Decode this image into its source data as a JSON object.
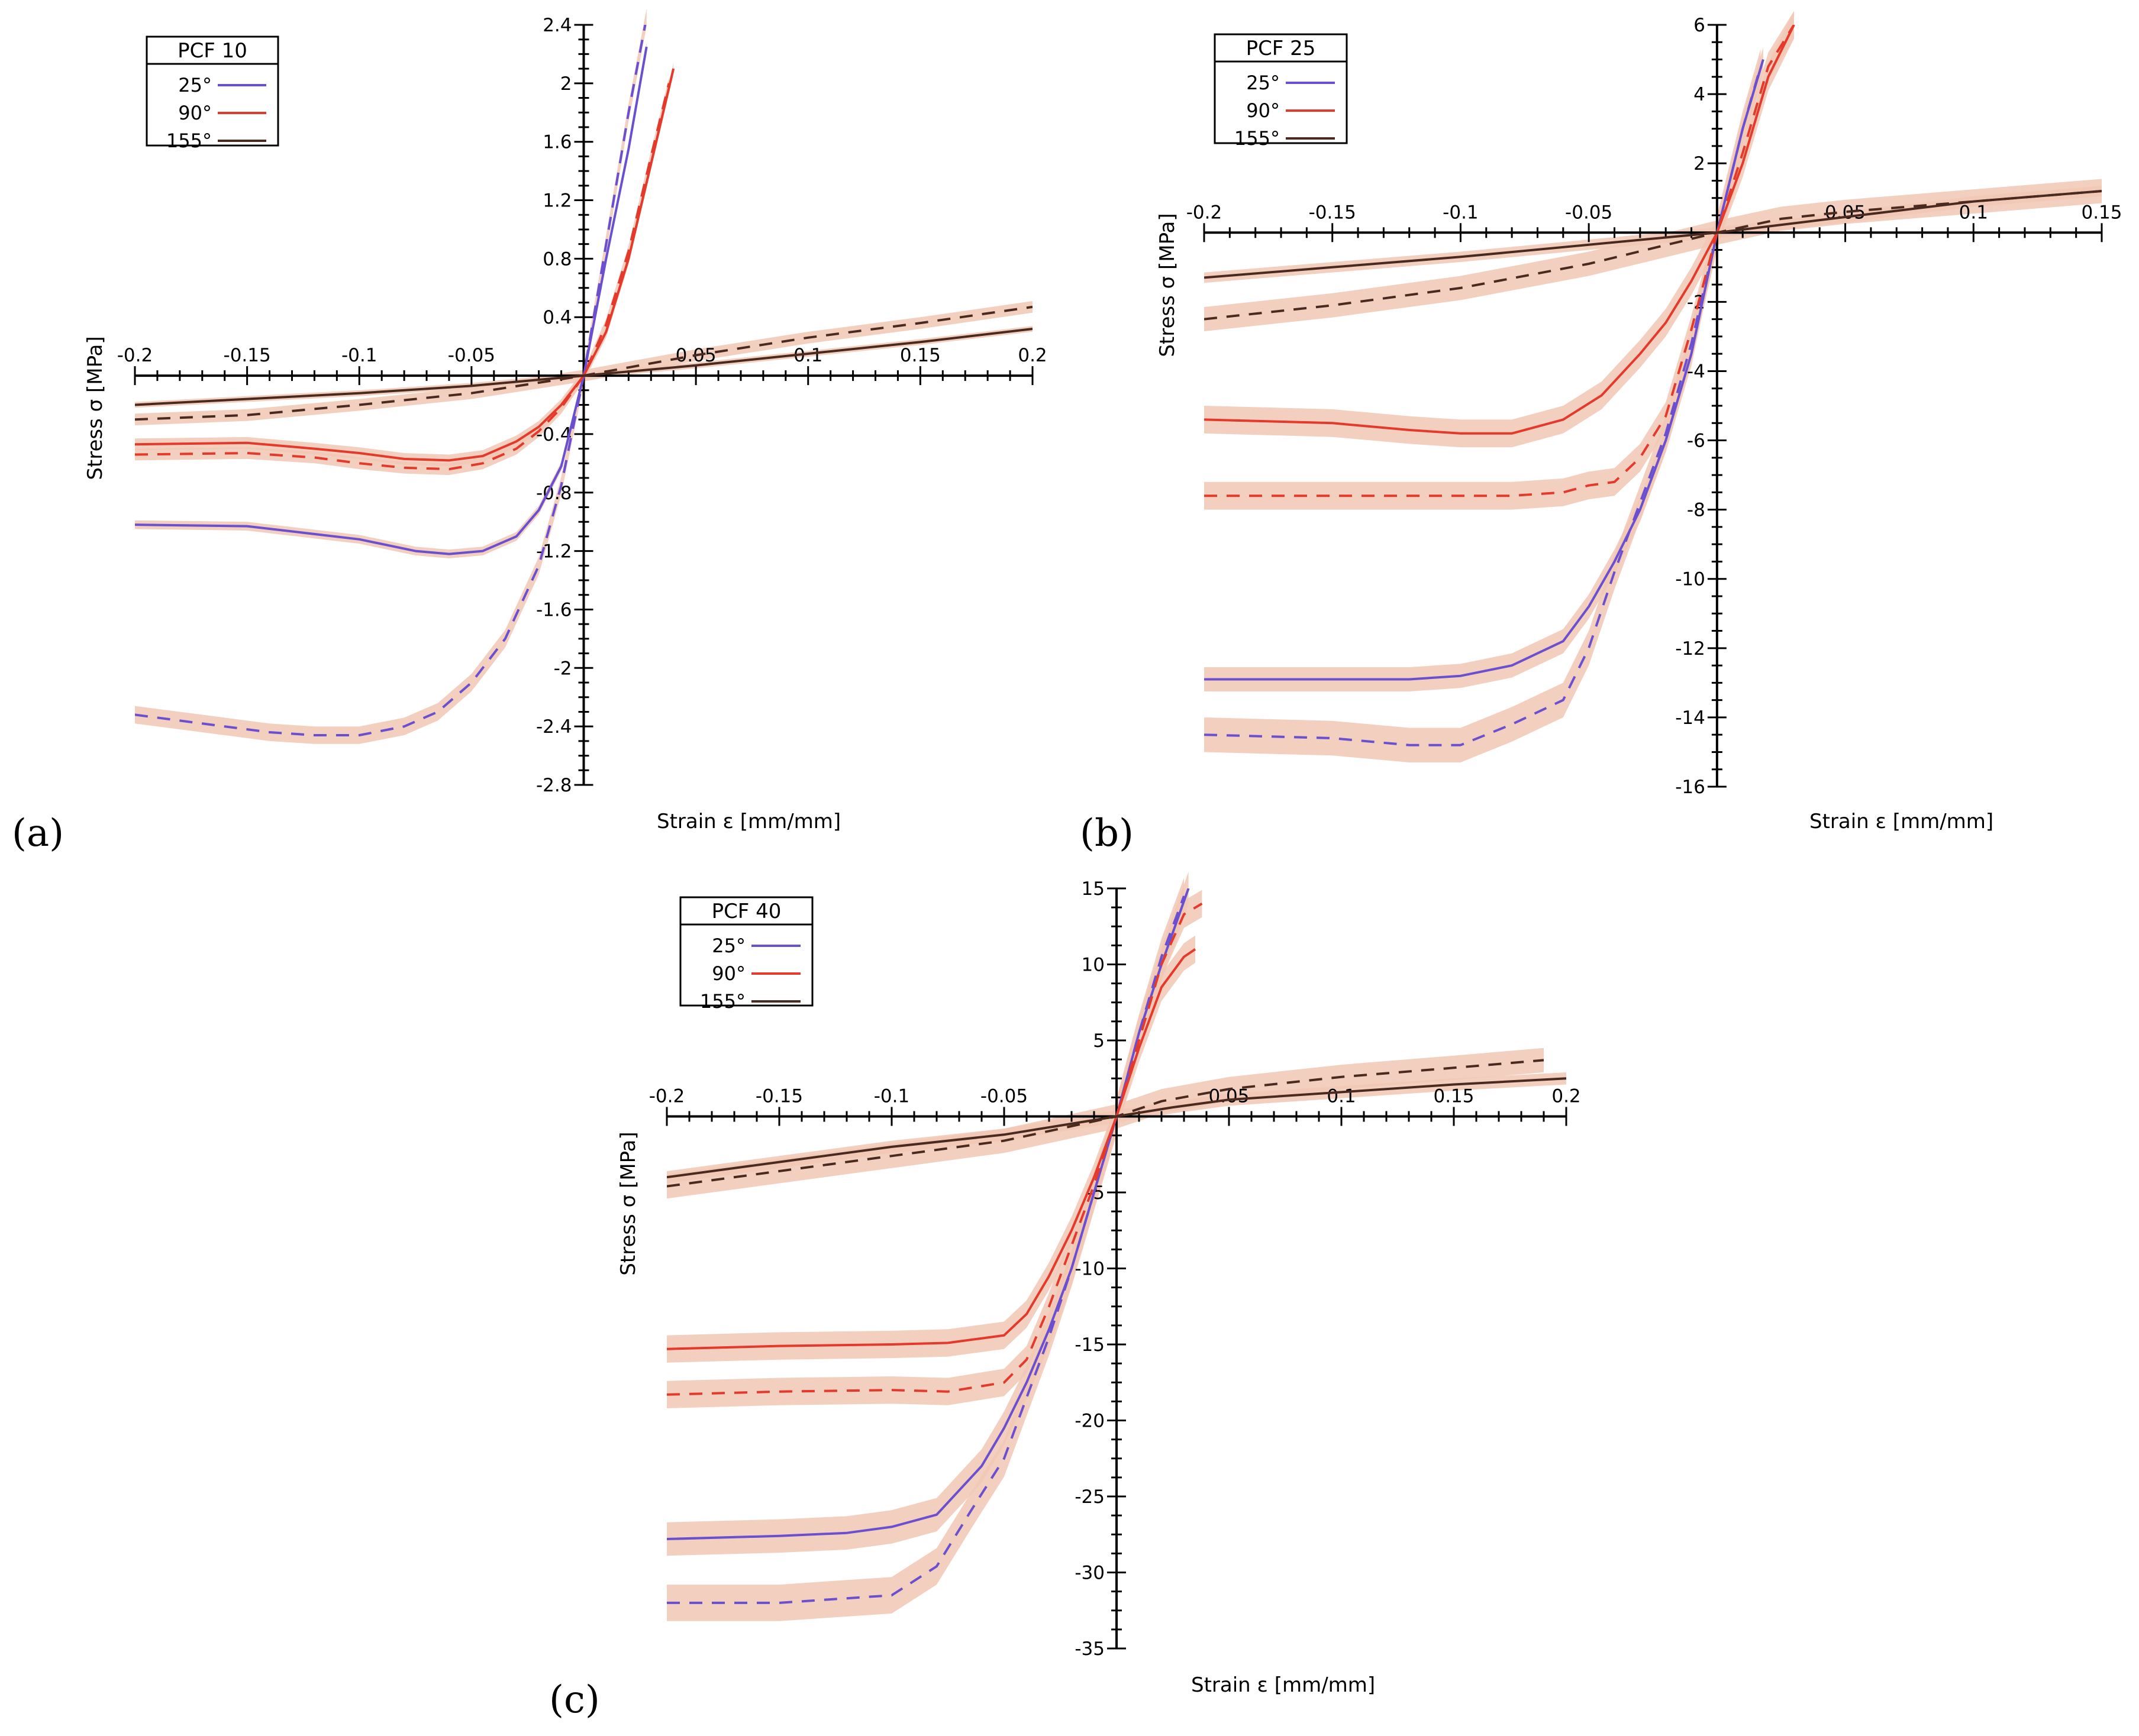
{
  "figure": {
    "panel_letters": [
      "(a)",
      "(b)",
      "(c)"
    ],
    "band_color": "#f1c7b4",
    "colors": {
      "25°": "#6a4fcf",
      "90°": "#e33a2c",
      "155°": "#4a2a1e"
    }
  },
  "chart_data": [
    {
      "type": "line",
      "title": "PCF 10",
      "xlabel": "Strain ε [mm/mm]",
      "ylabel": "Stress σ [MPa]",
      "xlim": [
        -0.2,
        0.2
      ],
      "ylim": [
        -2.8,
        2.4
      ],
      "xticks": [
        -0.2,
        -0.15,
        -0.1,
        -0.05,
        0.05,
        0.1,
        0.15,
        0.2
      ],
      "xtick_labels": [
        "-0.2",
        "-0.15",
        "-0.1",
        "-0.05",
        "0.05",
        "0.1",
        "0.15",
        "0.2"
      ],
      "yticks": [
        -2.8,
        -2.4,
        -2,
        -1.6,
        -1.2,
        -0.8,
        -0.4,
        0.4,
        0.8,
        1.2,
        1.6,
        2,
        2.4
      ],
      "ytick_labels": [
        "-2.8",
        "-2.4",
        "-2",
        "-1.6",
        "-1.2",
        "-0.8",
        "-0.4",
        "0.4",
        "0.8",
        "1.2",
        "1.6",
        "2",
        "2.4"
      ],
      "legend": {
        "title": "PCF 10",
        "entries": [
          "25°",
          "90°",
          "155°"
        ],
        "position": "top-left"
      },
      "series": [
        {
          "name": "25°",
          "dash": false,
          "band": 0.03,
          "x": [
            -0.2,
            -0.15,
            -0.1,
            -0.075,
            -0.06,
            -0.045,
            -0.03,
            -0.02,
            -0.01,
            0,
            0.01,
            0.02,
            0.028
          ],
          "y": [
            -1.02,
            -1.03,
            -1.12,
            -1.2,
            -1.22,
            -1.2,
            -1.1,
            -0.92,
            -0.62,
            0,
            0.8,
            1.55,
            2.25
          ]
        },
        {
          "name": "25°",
          "dash": true,
          "band": 0.06,
          "x": [
            -0.2,
            -0.16,
            -0.14,
            -0.12,
            -0.1,
            -0.08,
            -0.065,
            -0.05,
            -0.035,
            -0.02,
            -0.01,
            0,
            0.01,
            0.02,
            0.028
          ],
          "y": [
            -2.32,
            -2.4,
            -2.44,
            -2.46,
            -2.46,
            -2.4,
            -2.3,
            -2.1,
            -1.8,
            -1.3,
            -0.75,
            0,
            0.9,
            1.8,
            2.45
          ]
        },
        {
          "name": "90°",
          "dash": false,
          "band": 0.04,
          "x": [
            -0.2,
            -0.15,
            -0.12,
            -0.1,
            -0.08,
            -0.06,
            -0.045,
            -0.03,
            -0.02,
            -0.01,
            0,
            0.01,
            0.02,
            0.03,
            0.04
          ],
          "y": [
            -0.47,
            -0.46,
            -0.5,
            -0.53,
            -0.57,
            -0.58,
            -0.55,
            -0.45,
            -0.35,
            -0.2,
            0,
            0.3,
            0.8,
            1.45,
            2.1
          ]
        },
        {
          "name": "90°",
          "dash": true,
          "band": 0.04,
          "x": [
            -0.2,
            -0.15,
            -0.12,
            -0.1,
            -0.08,
            -0.06,
            -0.045,
            -0.03,
            -0.02,
            -0.01,
            0,
            0.01,
            0.02,
            0.03,
            0.038
          ],
          "y": [
            -0.54,
            -0.53,
            -0.56,
            -0.6,
            -0.63,
            -0.64,
            -0.6,
            -0.5,
            -0.38,
            -0.22,
            0,
            0.35,
            0.85,
            1.5,
            2.0
          ]
        },
        {
          "name": "155°",
          "dash": false,
          "band": 0.02,
          "x": [
            -0.2,
            -0.1,
            -0.05,
            0,
            0.05,
            0.1,
            0.15,
            0.2
          ],
          "y": [
            -0.2,
            -0.12,
            -0.07,
            0,
            0.07,
            0.15,
            0.23,
            0.32
          ]
        },
        {
          "name": "155°",
          "dash": true,
          "band": 0.04,
          "x": [
            -0.2,
            -0.15,
            -0.1,
            -0.05,
            -0.025,
            0,
            0.025,
            0.05,
            0.1,
            0.15,
            0.2
          ],
          "y": [
            -0.3,
            -0.27,
            -0.2,
            -0.12,
            -0.06,
            0,
            0.07,
            0.14,
            0.26,
            0.36,
            0.47
          ]
        }
      ]
    },
    {
      "type": "line",
      "title": "PCF 25",
      "xlabel": "Strain ε [mm/mm]",
      "ylabel": "Stress σ [MPa]",
      "xlim": [
        -0.2,
        0.15
      ],
      "ylim": [
        -16,
        6
      ],
      "xticks": [
        -0.2,
        -0.15,
        -0.1,
        -0.05,
        0.05,
        0.1,
        0.15
      ],
      "xtick_labels": [
        "-0.2",
        "-0.15",
        "-0.1",
        "-0.05",
        "0.05",
        "0.1",
        "0.15"
      ],
      "yticks": [
        -16,
        -14,
        -12,
        -10,
        -8,
        -6,
        -4,
        -2,
        2,
        4,
        6
      ],
      "ytick_labels": [
        "-16",
        "-14",
        "-12",
        "-10",
        "-8",
        "-6",
        "-4",
        "-2",
        "2",
        "4",
        "6"
      ],
      "legend": {
        "title": "PCF 25",
        "entries": [
          "25°",
          "90°",
          "155°"
        ],
        "position": "top-left"
      },
      "series": [
        {
          "name": "25°",
          "dash": false,
          "band": 0.35,
          "x": [
            -0.2,
            -0.15,
            -0.12,
            -0.1,
            -0.08,
            -0.06,
            -0.05,
            -0.04,
            -0.03,
            -0.02,
            -0.01,
            0,
            0.01,
            0.018
          ],
          "y": [
            -12.9,
            -12.9,
            -12.9,
            -12.8,
            -12.5,
            -11.8,
            -10.8,
            -9.5,
            -8,
            -6,
            -3.5,
            0,
            3,
            5
          ]
        },
        {
          "name": "25°",
          "dash": true,
          "band": 0.5,
          "x": [
            -0.2,
            -0.15,
            -0.12,
            -0.1,
            -0.08,
            -0.06,
            -0.05,
            -0.04,
            -0.03,
            -0.02,
            -0.01,
            0,
            0.01,
            0.017
          ],
          "y": [
            -14.5,
            -14.6,
            -14.8,
            -14.8,
            -14.2,
            -13.5,
            -12,
            -9.8,
            -7.8,
            -5.8,
            -3.2,
            0,
            3,
            4.8
          ]
        },
        {
          "name": "90°",
          "dash": false,
          "band": 0.4,
          "x": [
            -0.2,
            -0.15,
            -0.12,
            -0.1,
            -0.08,
            -0.06,
            -0.045,
            -0.03,
            -0.02,
            -0.01,
            0,
            0.01,
            0.02,
            0.03
          ],
          "y": [
            -5.4,
            -5.5,
            -5.7,
            -5.8,
            -5.8,
            -5.4,
            -4.7,
            -3.5,
            -2.6,
            -1.4,
            0,
            2,
            4.5,
            6
          ]
        },
        {
          "name": "90°",
          "dash": true,
          "band": 0.4,
          "x": [
            -0.2,
            -0.15,
            -0.12,
            -0.1,
            -0.08,
            -0.06,
            -0.05,
            -0.04,
            -0.03,
            -0.02,
            -0.01,
            0,
            0.01,
            0.02,
            0.03
          ],
          "y": [
            -7.6,
            -7.6,
            -7.6,
            -7.6,
            -7.6,
            -7.5,
            -7.3,
            -7.2,
            -6.5,
            -5.3,
            -2.8,
            0,
            2.3,
            4.8,
            6
          ]
        },
        {
          "name": "155°",
          "dash": false,
          "band": 0.15,
          "x": [
            -0.2,
            -0.15,
            -0.1,
            -0.05,
            0,
            0.05,
            0.1,
            0.15
          ],
          "y": [
            -1.3,
            -1.0,
            -0.7,
            -0.35,
            0,
            0.45,
            0.9,
            1.2
          ]
        },
        {
          "name": "155°",
          "dash": true,
          "band": 0.35,
          "x": [
            -0.2,
            -0.15,
            -0.1,
            -0.05,
            -0.025,
            0,
            0.025,
            0.05,
            0.1,
            0.15
          ],
          "y": [
            -2.5,
            -2.1,
            -1.6,
            -0.9,
            -0.45,
            0,
            0.4,
            0.6,
            0.9,
            1.2
          ]
        }
      ]
    },
    {
      "type": "line",
      "title": "PCF 40",
      "xlabel": "Strain ε [mm/mm]",
      "ylabel": "Stress σ [MPa]",
      "xlim": [
        -0.2,
        0.2
      ],
      "ylim": [
        -35,
        15
      ],
      "xticks": [
        -0.2,
        -0.15,
        -0.1,
        -0.05,
        0.05,
        0.1,
        0.15,
        0.2
      ],
      "xtick_labels": [
        "-0.2",
        "-0.15",
        "-0.1",
        "-0.05",
        "0.05",
        "0.1",
        "0.15",
        "0.2"
      ],
      "yticks": [
        -35,
        -30,
        -25,
        -20,
        -15,
        -10,
        -5,
        5,
        10,
        15
      ],
      "ytick_labels": [
        "-35",
        "-30",
        "-25",
        "-20",
        "-15",
        "-10",
        "-5",
        "5",
        "10",
        "15"
      ],
      "legend": {
        "title": "PCF 40",
        "entries": [
          "25°",
          "90°",
          "155°"
        ],
        "position": "top-left"
      },
      "series": [
        {
          "name": "25°",
          "dash": false,
          "band": 1.1,
          "x": [
            -0.2,
            -0.15,
            -0.12,
            -0.1,
            -0.08,
            -0.06,
            -0.05,
            -0.04,
            -0.03,
            -0.02,
            -0.01,
            0,
            0.01,
            0.02,
            0.032
          ],
          "y": [
            -27.8,
            -27.6,
            -27.4,
            -27,
            -26.2,
            -23,
            -20.5,
            -17.5,
            -14,
            -10,
            -5,
            0,
            5.5,
            10,
            15
          ]
        },
        {
          "name": "25°",
          "dash": true,
          "band": 1.2,
          "x": [
            -0.2,
            -0.15,
            -0.12,
            -0.1,
            -0.08,
            -0.065,
            -0.05,
            -0.04,
            -0.03,
            -0.02,
            -0.01,
            0,
            0.01,
            0.02,
            0.03
          ],
          "y": [
            -32,
            -32,
            -31.7,
            -31.5,
            -29.6,
            -26,
            -22.5,
            -18.5,
            -14.5,
            -10,
            -5,
            0,
            5.5,
            10.5,
            14.5
          ]
        },
        {
          "name": "90°",
          "dash": false,
          "band": 0.9,
          "x": [
            -0.2,
            -0.15,
            -0.1,
            -0.075,
            -0.05,
            -0.04,
            -0.03,
            -0.02,
            -0.01,
            0,
            0.01,
            0.02,
            0.03,
            0.035
          ],
          "y": [
            -15.3,
            -15.1,
            -15,
            -14.9,
            -14.4,
            -13,
            -10.5,
            -7.5,
            -4,
            0,
            4.5,
            8.5,
            10.5,
            11
          ]
        },
        {
          "name": "90°",
          "dash": true,
          "band": 0.9,
          "x": [
            -0.2,
            -0.15,
            -0.1,
            -0.075,
            -0.05,
            -0.04,
            -0.03,
            -0.02,
            -0.01,
            0,
            0.01,
            0.02,
            0.03,
            0.038
          ],
          "y": [
            -18.3,
            -18.1,
            -18,
            -18.1,
            -17.5,
            -16,
            -12.5,
            -8.5,
            -4.5,
            0,
            5,
            10,
            13.3,
            14
          ]
        },
        {
          "name": "155°",
          "dash": false,
          "band": 0.4,
          "x": [
            -0.2,
            -0.15,
            -0.1,
            -0.05,
            -0.025,
            0,
            0.025,
            0.05,
            0.1,
            0.15,
            0.2
          ],
          "y": [
            -4,
            -3,
            -2,
            -1.2,
            -0.6,
            0,
            0.6,
            1.1,
            1.6,
            2.1,
            2.5
          ]
        },
        {
          "name": "155°",
          "dash": true,
          "band": 0.8,
          "x": [
            -0.2,
            -0.15,
            -0.1,
            -0.05,
            -0.025,
            0,
            0.02,
            0.05,
            0.1,
            0.15,
            0.19
          ],
          "y": [
            -4.6,
            -3.6,
            -2.6,
            -1.6,
            -0.8,
            0,
            1,
            1.8,
            2.6,
            3.2,
            3.7
          ]
        }
      ]
    }
  ]
}
